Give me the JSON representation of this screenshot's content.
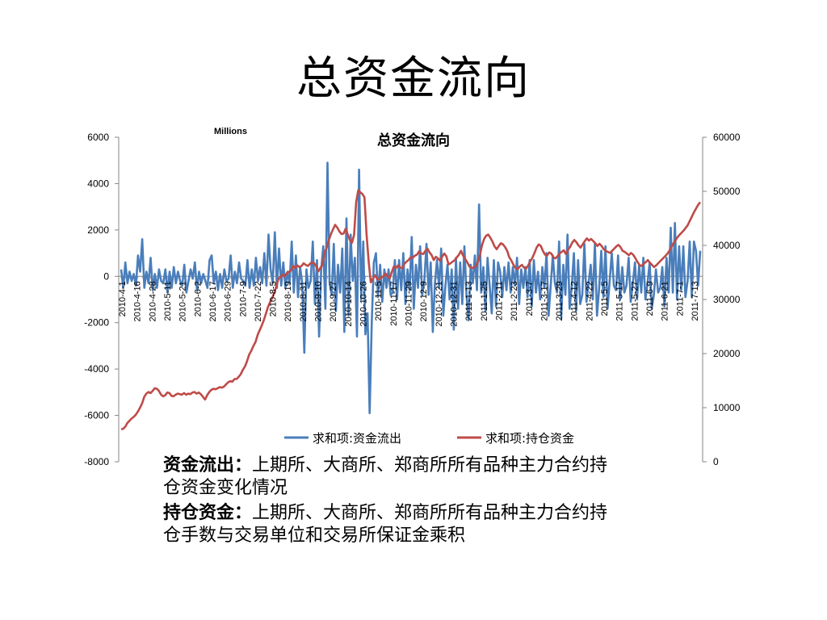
{
  "slide": {
    "title": "总资金流向"
  },
  "chart_data": {
    "type": "line",
    "title": "总资金流向",
    "units_label": "Millions",
    "y_left": {
      "min": -8000,
      "max": 6000,
      "ticks": [
        -8000,
        -6000,
        -4000,
        -2000,
        0,
        2000,
        4000,
        6000
      ]
    },
    "y_right": {
      "min": 0,
      "max": 60000,
      "ticks": [
        0,
        10000,
        20000,
        30000,
        40000,
        50000,
        60000
      ]
    },
    "grid": false,
    "legend_position": "bottom",
    "x_tick_labels": [
      "2010-4-1",
      "2010-4-16",
      "2010-4-28",
      "2010-5-11",
      "2010-5-21",
      "2010-6-2",
      "2010-6-17",
      "2010-6-29",
      "2010-7-9",
      "2010-7-22",
      "2010-8-5",
      "2010-8-19",
      "2010-8-31",
      "2010-9-10",
      "2010-9-27",
      "2010-10-14",
      "2010-10-26",
      "2010-11-5",
      "2010-11-17",
      "2010-11-29",
      "2010-12-9",
      "2010-12-21",
      "2010-12-31",
      "2011-1-13",
      "2011-1-25",
      "2011-2-11",
      "2011-2-23",
      "2011-3-7",
      "2011-3-17",
      "2011-3-29",
      "2011-4-12",
      "2011-4-22",
      "2011-5-5",
      "2011-5-17",
      "2011-5-27",
      "2011-6-9",
      "2011-6-21",
      "2011-7-1",
      "2011-7-13"
    ],
    "series": [
      {
        "name": "求和项:资金流出",
        "axis": "left",
        "color": "#4a7ebb",
        "values": [
          300,
          -500,
          600,
          -300,
          200,
          -200,
          100,
          -400,
          900,
          200,
          1600,
          -500,
          200,
          -300,
          800,
          -600,
          100,
          -500,
          300,
          -200,
          -300,
          300,
          -700,
          200,
          -500,
          400,
          -300,
          200,
          -200,
          -400,
          500,
          -700,
          -200,
          300,
          -100,
          600,
          -600,
          200,
          -300,
          100,
          -200,
          -500,
          700,
          900,
          -300,
          200,
          -600,
          100,
          -500,
          300,
          -200,
          -100,
          900,
          -500,
          200,
          -300,
          600,
          -100,
          -200,
          -400,
          700,
          -500,
          300,
          -400,
          800,
          -200,
          400,
          -300,
          1000,
          -400,
          1800,
          300,
          -300,
          1900,
          -500,
          1200,
          -400,
          600,
          -500,
          200,
          -300,
          1500,
          -700,
          900,
          -900,
          400,
          -300,
          -3300,
          300,
          -500,
          -200,
          1500,
          -1200,
          700,
          -2600,
          300,
          1300,
          -1400,
          4900,
          -300,
          -800,
          1400,
          -1500,
          500,
          -700,
          1200,
          -2400,
          2500,
          -1700,
          1800,
          -200,
          800,
          -2600,
          4600,
          -1000,
          1500,
          -2500,
          -1600,
          -5900,
          -2000,
          600,
          1000,
          -900,
          500,
          -1100,
          300,
          -500,
          300,
          -800,
          -700,
          700,
          -1000,
          700,
          -600,
          1000,
          -1200,
          300,
          -600,
          1700,
          -1400,
          500,
          -500,
          1300,
          -800,
          -200,
          1400,
          -800,
          600,
          -2400,
          -300,
          700,
          -500,
          1200,
          -1700,
          -400,
          500,
          -1000,
          300,
          -2300,
          800,
          -1400,
          600,
          -1200,
          1300,
          -800,
          -1900,
          500,
          -300,
          900,
          -600,
          3100,
          -700,
          400,
          -1500,
          800,
          -400,
          -1600,
          700,
          -1300,
          600,
          200,
          -900,
          400,
          -600,
          600,
          -700,
          400,
          -400,
          800,
          -1200,
          300,
          -500,
          400,
          -900,
          700,
          -1300,
          700,
          -700,
          200,
          -1000,
          400,
          -500,
          1000,
          -1700,
          -400,
          900,
          -300,
          -700,
          1500,
          -1800,
          500,
          -800,
          1800,
          -1400,
          -400,
          1000,
          -1500,
          700,
          -1200,
          -800,
          1400,
          -1100,
          -300,
          500,
          -1000,
          1400,
          -1700,
          -500,
          1100,
          -900,
          1300,
          -1400,
          -200,
          1000,
          -400,
          -600,
          900,
          -1000,
          400,
          -700,
          -400,
          800,
          -1100,
          -300,
          600,
          -1000,
          500,
          -700,
          800,
          -1000,
          -300,
          600,
          -1400,
          -800,
          300,
          -700,
          -500,
          400,
          -1300,
          800,
          -700,
          2100,
          -700,
          2300,
          -1000,
          1300,
          -600,
          1300,
          -900,
          -200,
          1500,
          -900,
          1500,
          1100,
          -400,
          1100
        ]
      },
      {
        "name": "求和项:持仓资金",
        "axis": "right",
        "color": "#be4b48",
        "values": [
          6000,
          6100,
          6500,
          7200,
          7600,
          8000,
          8300,
          8700,
          9300,
          10000,
          10800,
          12000,
          12600,
          12900,
          12700,
          13100,
          13600,
          13500,
          13100,
          12400,
          12100,
          12300,
          12800,
          12700,
          12200,
          12100,
          12400,
          12600,
          12500,
          12400,
          12700,
          12400,
          12600,
          12500,
          12800,
          12900,
          12600,
          12800,
          12500,
          12000,
          11500,
          12300,
          12900,
          13300,
          13500,
          13400,
          13600,
          13800,
          13700,
          13900,
          14300,
          14700,
          14900,
          14800,
          15300,
          15300,
          15700,
          16200,
          17000,
          17600,
          18600,
          19800,
          20500,
          21400,
          22100,
          23400,
          24300,
          25200,
          26200,
          27400,
          28600,
          29500,
          30300,
          31200,
          32500,
          33800,
          34200,
          34600,
          34300,
          34900,
          35100,
          35400,
          36200,
          35800,
          36300,
          36000,
          36200,
          36700,
          36400,
          36200,
          36600,
          36900,
          36700,
          36100,
          35200,
          35900,
          36400,
          38700,
          39600,
          41000,
          42100,
          43000,
          43800,
          43300,
          42600,
          42100,
          42200,
          43100,
          42000,
          41000,
          40500,
          41900,
          48000,
          50200,
          49800,
          49500,
          48900,
          42000,
          37000,
          33200,
          33900,
          34500,
          33800,
          33700,
          34100,
          34300,
          34800,
          34300,
          33900,
          35100,
          36100,
          35800,
          36300,
          35900,
          35800,
          36600,
          37000,
          37300,
          37800,
          37700,
          38100,
          38300,
          38900,
          38500,
          38400,
          39000,
          39400,
          38700,
          38200,
          37300,
          37900,
          37600,
          37200,
          37900,
          38500,
          38000,
          36500,
          36700,
          37000,
          37300,
          37800,
          38300,
          39000,
          38100,
          37500,
          36900,
          36100,
          35800,
          35900,
          36100,
          36900,
          38200,
          40000,
          41200,
          41800,
          42000,
          41400,
          40700,
          39800,
          39300,
          39900,
          40400,
          40200,
          39700,
          39000,
          37800,
          37200,
          36400,
          35800,
          35600,
          36100,
          36400,
          35900,
          35700,
          36300,
          37100,
          37700,
          38600,
          39600,
          40200,
          39900,
          39000,
          38300,
          38100,
          38700,
          38500,
          37800,
          37600,
          38000,
          38500,
          38800,
          39100,
          38400,
          39200,
          39700,
          40500,
          41000,
          40600,
          40000,
          39600,
          40200,
          40800,
          41300,
          40900,
          41200,
          40800,
          40400,
          39900,
          40300,
          39900,
          39300,
          39000,
          38800,
          38600,
          39000,
          39400,
          39800,
          40100,
          39700,
          39000,
          38800,
          38500,
          38200,
          38600,
          38300,
          37700,
          37000,
          36400,
          36200,
          36600,
          36900,
          37300,
          36800,
          36400,
          36000,
          36300,
          36700,
          37100,
          37500,
          37900,
          38300,
          38800,
          39500,
          40200,
          40800,
          41400,
          41900,
          42300,
          42700,
          43200,
          43700,
          44500,
          45300,
          46100,
          46800,
          47500,
          48000
        ]
      }
    ]
  },
  "description": {
    "item1_label": "资金流出：",
    "item1_text": "上期所、大商所、郑商所所有品种主力合约持仓资金变化情况",
    "item2_label": "持仓资金：",
    "item2_text": "上期所、大商所、郑商所所有品种主力合约持仓手数与交易单位和交易所保证金乘积"
  }
}
